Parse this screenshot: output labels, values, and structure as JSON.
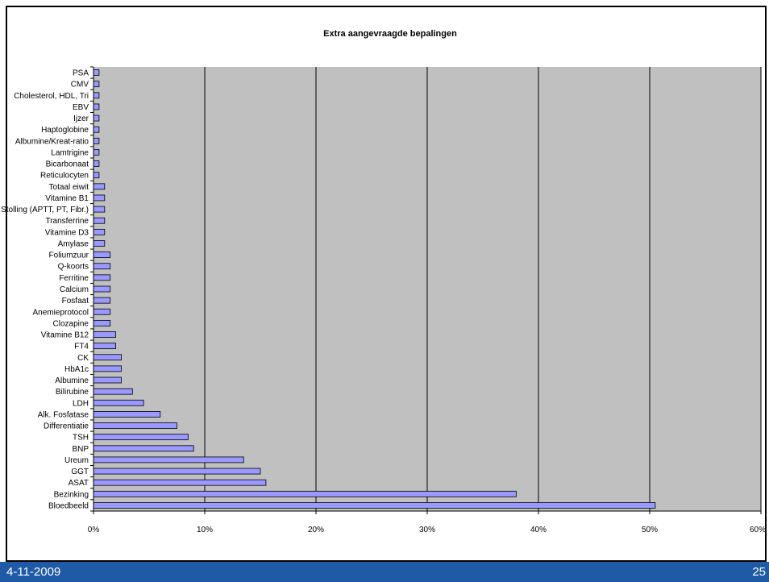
{
  "footer": {
    "date": "4-11-2009",
    "page": "25"
  },
  "chart_data": {
    "type": "bar",
    "orientation": "horizontal",
    "title": "Extra aangevraagde bepalingen",
    "xlabel": "",
    "ylabel": "",
    "xlim": [
      0,
      0.6
    ],
    "xticks": [
      0,
      0.1,
      0.2,
      0.3,
      0.4,
      0.5,
      0.6
    ],
    "xtick_labels": [
      "0%",
      "10%",
      "20%",
      "30%",
      "40%",
      "50%",
      "60%"
    ],
    "grid": "vertical",
    "plot_background": "#c0c0c0",
    "bar_color": "#9999ff",
    "categories": [
      "PSA",
      "CMV",
      "Cholesterol, HDL, Tri",
      "EBV",
      "Ijzer",
      "Haptoglobine",
      "Albumine/Kreat-ratio",
      "Lamtrigine",
      "Bicarbonaat",
      "Reticulocyten",
      "Totaal eiwit",
      "Vitamine B1",
      "Stolling (APTT, PT, Fibr.)",
      "Transferrine",
      "Vitamine D3",
      "Amylase",
      "Foliumzuur",
      "Q-koorts",
      "Ferritine",
      "Calcium",
      "Fosfaat",
      "Anemieprotocol",
      "Clozapine",
      "Vitamine B12",
      "FT4",
      "CK",
      "HbA1c",
      "Albumine",
      "Bilirubine",
      "LDH",
      "Alk. Fosfatase",
      "Differentiatie",
      "TSH",
      "BNP",
      "Ureum",
      "GGT",
      "ASAT",
      "Bezinking",
      "Bloedbeeld"
    ],
    "values": [
      0.005,
      0.005,
      0.005,
      0.005,
      0.005,
      0.005,
      0.005,
      0.005,
      0.005,
      0.005,
      0.01,
      0.01,
      0.01,
      0.01,
      0.01,
      0.01,
      0.015,
      0.015,
      0.015,
      0.015,
      0.015,
      0.015,
      0.015,
      0.02,
      0.02,
      0.025,
      0.025,
      0.025,
      0.035,
      0.045,
      0.06,
      0.075,
      0.085,
      0.09,
      0.135,
      0.15,
      0.155,
      0.38,
      0.505
    ]
  }
}
